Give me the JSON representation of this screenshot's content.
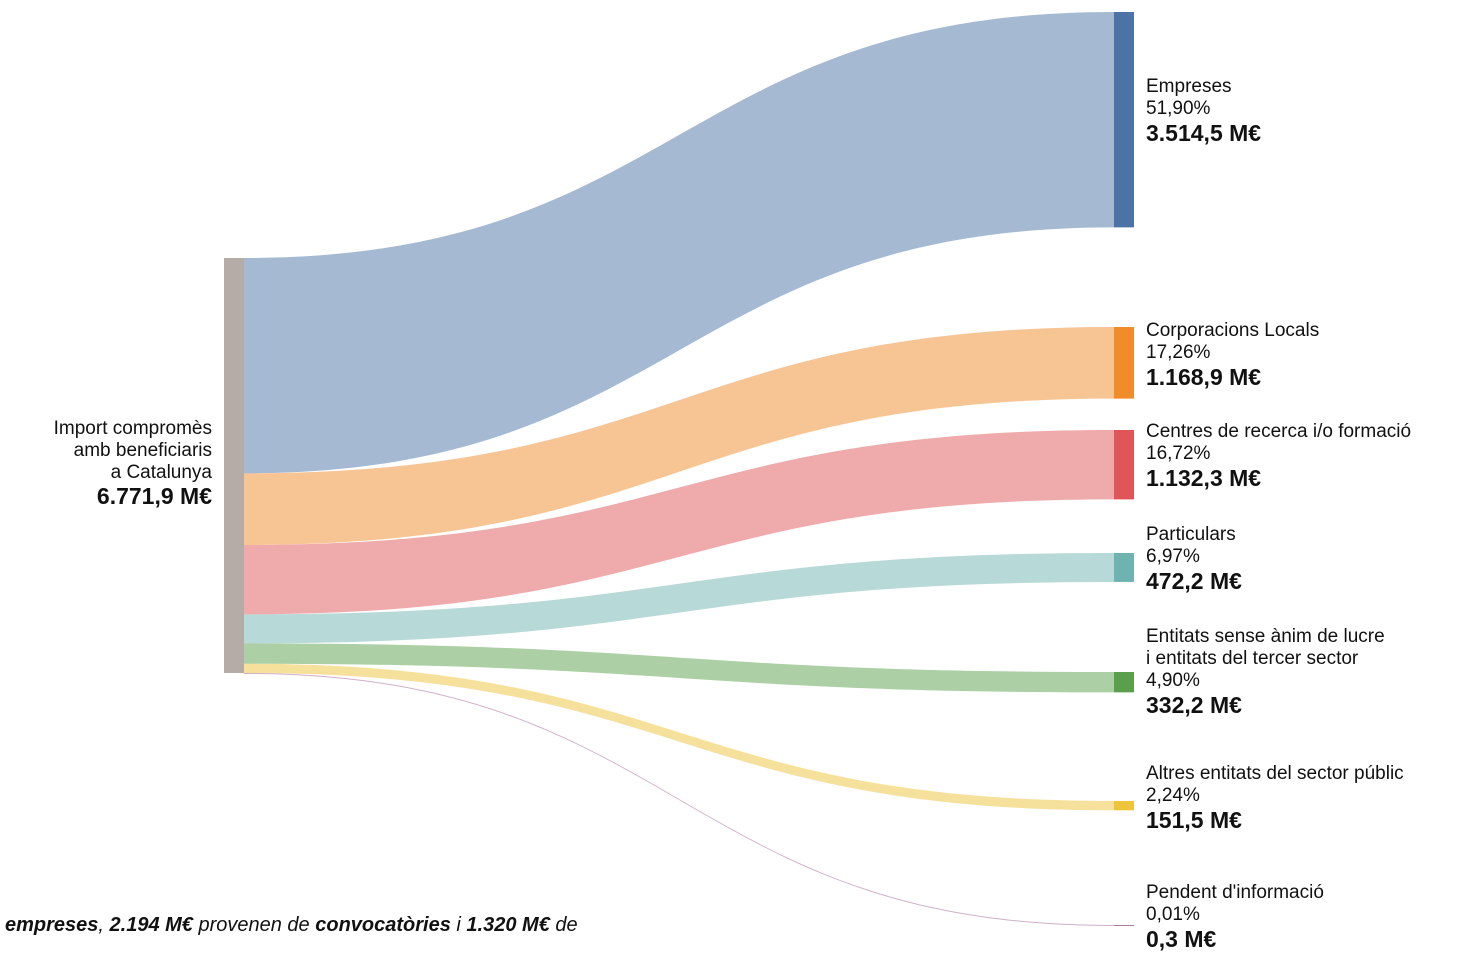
{
  "chart_data": {
    "type": "sankey",
    "source": {
      "name": [
        "Import compromès",
        "amb beneficiaris",
        "a Catalunya"
      ],
      "value": 6771.9,
      "value_label": "6.771,9 M€",
      "color": "#b5aca8"
    },
    "targets": [
      {
        "name": [
          "Empreses"
        ],
        "share": 51.9,
        "share_label": "51,90%",
        "value": 3514.5,
        "value_label": "3.514,5 M€",
        "color": "#4c73a5"
      },
      {
        "name": [
          "Corporacions Locals"
        ],
        "share": 17.26,
        "share_label": "17,26%",
        "value": 1168.9,
        "value_label": "1.168,9 M€",
        "color": "#f08c2a"
      },
      {
        "name": [
          "Centres de recerca i/o formació"
        ],
        "share": 16.72,
        "share_label": "16,72%",
        "value": 1132.3,
        "value_label": "1.132,3 M€",
        "color": "#e05658"
      },
      {
        "name": [
          "Particulars"
        ],
        "share": 6.97,
        "share_label": "6,97%",
        "value": 472.2,
        "value_label": "472,2 M€",
        "color": "#6fb3b0"
      },
      {
        "name": [
          "Entitats sense ànim de lucre",
          "i entitats del tercer sector"
        ],
        "share": 4.9,
        "share_label": "4,90%",
        "value": 332.2,
        "value_label": "332,2 M€",
        "color": "#5aa04c"
      },
      {
        "name": [
          "Altres entitats del sector públic"
        ],
        "share": 2.24,
        "share_label": "2,24%",
        "value": 151.5,
        "value_label": "151,5 M€",
        "color": "#eec43a"
      },
      {
        "name": [
          "Pendent d'informació"
        ],
        "share": 0.01,
        "share_label": "0,01%",
        "value": 0.3,
        "value_label": "0,3 M€",
        "color": "#b07aa1"
      }
    ],
    "annotation": [
      {
        "text": "empreses",
        "bold": true
      },
      {
        "text": ", ",
        "bold": false
      },
      {
        "text": "2.194 M€",
        "bold": true
      },
      {
        "text": " provenen de ",
        "bold": false
      },
      {
        "text": "convocatòries",
        "bold": true
      },
      {
        "text": " i ",
        "bold": false
      },
      {
        "text": "1.320 M€",
        "bold": true
      },
      {
        "text": " de",
        "bold": false
      }
    ]
  }
}
